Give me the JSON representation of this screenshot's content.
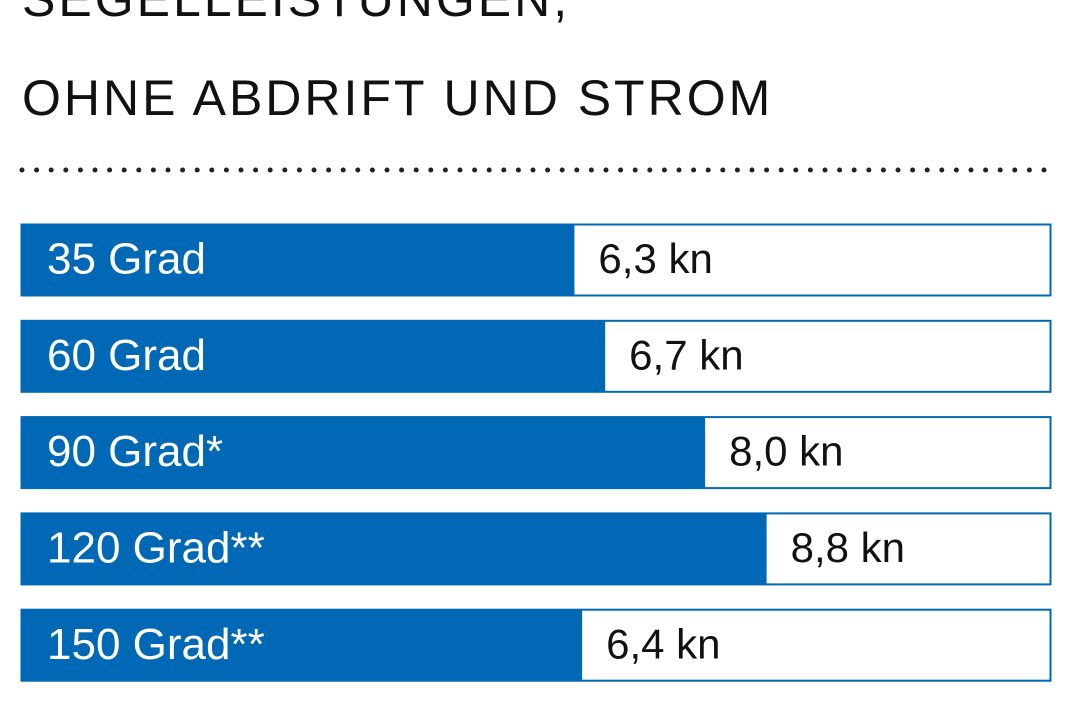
{
  "chart_data": {
    "type": "hbar",
    "title": [
      "SEGELLEISTUNGEN,",
      "OHNE ABDRIFT UND STROM"
    ],
    "categories": [
      "35 Grad",
      "60 Grad",
      "90 Grad*",
      "120 Grad**",
      "150 Grad**"
    ],
    "values": [
      6.3,
      6.7,
      8.0,
      8.8,
      6.4
    ],
    "value_labels": [
      "6,3 kn",
      "6,7 kn",
      "8,0 kn",
      "8,8 kn",
      "6,4 kn"
    ],
    "color": "#0068b4",
    "xlim": [
      -0.9,
      12.5
    ]
  }
}
